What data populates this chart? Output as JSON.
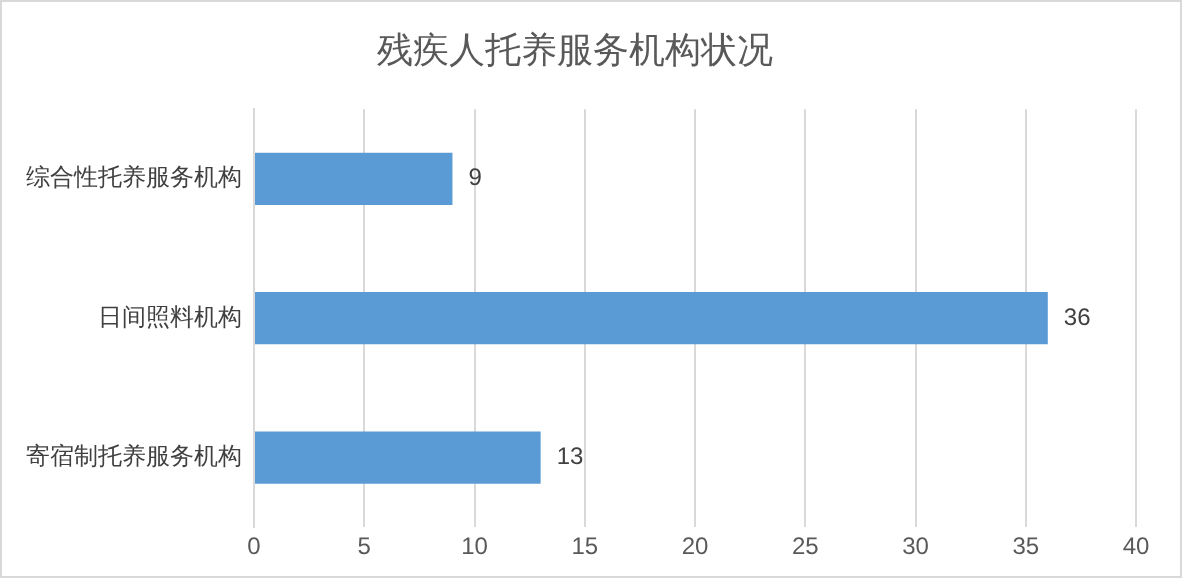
{
  "chart_data": {
    "type": "bar",
    "title": "残疾人托养服务机构状况",
    "orientation": "horizontal",
    "categories": [
      "综合性托养服务机构",
      "日间照料机构",
      "寄宿制托养服务机构"
    ],
    "values": [
      9,
      36,
      13
    ],
    "color": "#5b9bd5",
    "xlim": [
      0,
      40
    ],
    "xticks": [
      0,
      5,
      10,
      15,
      20,
      25,
      30,
      35,
      40
    ],
    "grid": "x",
    "data_labels": true,
    "legend": false
  }
}
